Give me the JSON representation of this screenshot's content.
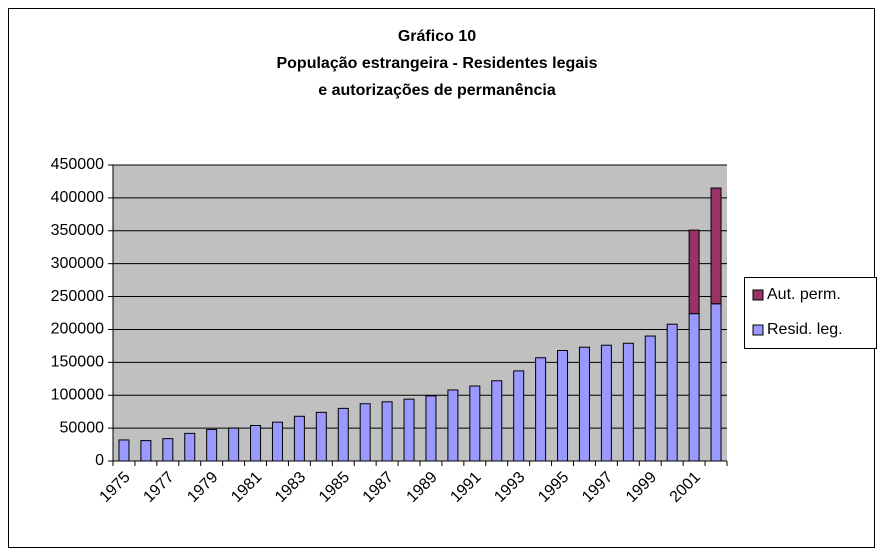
{
  "chart_data": {
    "type": "stacked_bar",
    "title": [
      "Gráfico 10",
      "População estrangeira - Residentes legais",
      "e autorizações de permanência"
    ],
    "categories": [
      "1975",
      null,
      "1977",
      null,
      "1979",
      null,
      "1981",
      null,
      "1983",
      null,
      "1985",
      null,
      "1987",
      null,
      "1989",
      null,
      "1991",
      null,
      "1993",
      null,
      "1995",
      null,
      "1997",
      null,
      "1999",
      null,
      "2001",
      null
    ],
    "series": [
      {
        "name": "Resid. leg.",
        "color": "#9999ff",
        "values": [
          32000,
          31000,
          34000,
          42000,
          48000,
          50000,
          54000,
          59000,
          68000,
          74000,
          80000,
          87000,
          90000,
          94000,
          99000,
          108000,
          114000,
          122000,
          137000,
          157000,
          168000,
          173000,
          176000,
          179000,
          190000,
          208000,
          224000,
          239000
        ]
      },
      {
        "name": "Aut. perm.",
        "color": "#993366",
        "values": [
          null,
          null,
          null,
          null,
          null,
          null,
          null,
          null,
          null,
          null,
          null,
          null,
          null,
          null,
          null,
          null,
          null,
          null,
          null,
          null,
          null,
          null,
          null,
          null,
          null,
          null,
          127000,
          176000
        ]
      }
    ],
    "ylim": [
      0,
      450000
    ],
    "yticks": [
      0,
      50000,
      100000,
      150000,
      200000,
      250000,
      300000,
      350000,
      400000,
      450000
    ],
    "grid": true,
    "legend": "right"
  }
}
